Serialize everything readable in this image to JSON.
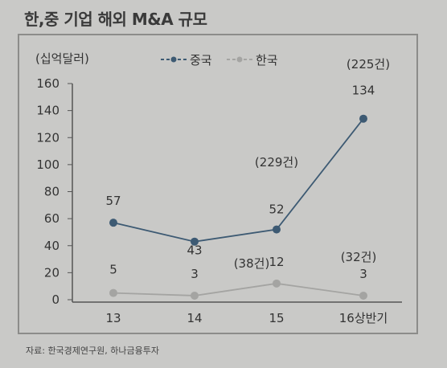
{
  "title": "한,중 기업 해외 M&A 규모",
  "source": "자료: 한국경제연구원, 하나금융투자",
  "colors": {
    "china": "#3d5a73",
    "korea": "#a4a4a2",
    "axis": "#555555"
  },
  "chart_data": {
    "type": "line",
    "ylabel": "(십억달러)",
    "ylim": [
      0,
      160
    ],
    "yticks": [
      "0",
      "20",
      "40",
      "60",
      "80",
      "100",
      "120",
      "140",
      "160"
    ],
    "categories": [
      "13",
      "14",
      "15",
      "16상반기"
    ],
    "legend_position": "top-center",
    "series": [
      {
        "name": "중국",
        "values": [
          57,
          43,
          52,
          134
        ],
        "labels": [
          "57",
          "43",
          "52",
          "134"
        ]
      },
      {
        "name": "한국",
        "values": [
          5,
          3,
          12,
          3
        ],
        "labels": [
          "5",
          "3",
          "12",
          "3"
        ]
      }
    ],
    "annotations": [
      "(229건)",
      "(225건)",
      "(38건)",
      "(32건)"
    ]
  }
}
